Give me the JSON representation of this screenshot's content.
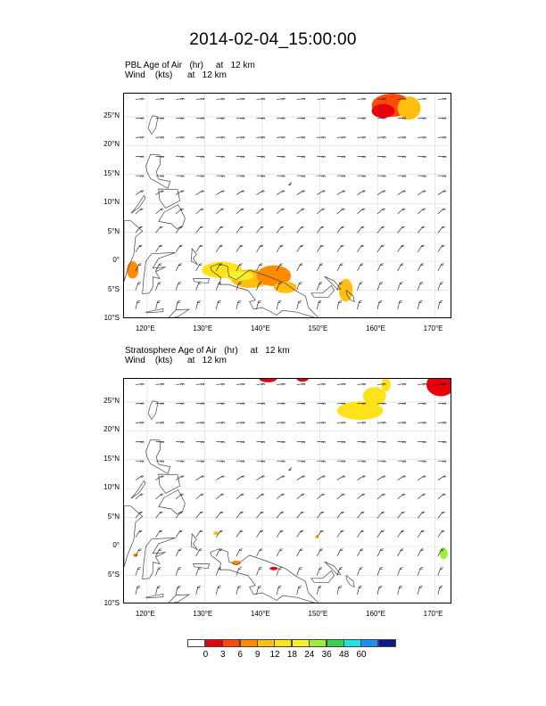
{
  "title": "2014-02-04_15:00:00",
  "colors": {
    "land_outline": "#444444",
    "grid": "#d9d9d9",
    "barb": "#111111"
  },
  "panels": [
    {
      "label_line1": "PBL Age of Air   (hr)     at   12 km",
      "label_line2": "Wind    (kts)      at   12 km"
    },
    {
      "label_line1": "Stratosphere Age of Air   (hr)     at   12 km",
      "label_line2": "Wind    (kts)      at   12 km"
    }
  ],
  "map": {
    "lon_range": [
      116,
      173
    ],
    "lat_range": [
      -10,
      29
    ],
    "x_ticks": [
      {
        "value": 120,
        "label": "120°E"
      },
      {
        "value": 130,
        "label": "130°E"
      },
      {
        "value": 140,
        "label": "140°E"
      },
      {
        "value": 150,
        "label": "150°E"
      },
      {
        "value": 160,
        "label": "160°E"
      },
      {
        "value": 170,
        "label": "170°E"
      }
    ],
    "y_ticks": [
      {
        "value": 25,
        "label": "25°N"
      },
      {
        "value": 20,
        "label": "20°N"
      },
      {
        "value": 15,
        "label": "15°N"
      },
      {
        "value": 10,
        "label": "10°N"
      },
      {
        "value": 5,
        "label": "5°N"
      },
      {
        "value": 0,
        "label": "0°"
      },
      {
        "value": -5,
        "label": "5°S"
      },
      {
        "value": -10,
        "label": "10°S"
      }
    ],
    "grid": true
  },
  "colorbar": {
    "colors": [
      "#ffffff",
      "#e8000b",
      "#ff4a0a",
      "#ff8c00",
      "#ffbe10",
      "#ffe31a",
      "#f7f12a",
      "#9bee3a",
      "#38d44a",
      "#1fe4e4",
      "#1e8ff0",
      "#0a1a8c"
    ],
    "labels": [
      "0",
      "3",
      "6",
      "9",
      "12",
      "18",
      "24",
      "36",
      "48",
      "60"
    ]
  },
  "fields": {
    "pbl": [
      {
        "lon": 162.5,
        "lat": 27.0,
        "rlon": 3.5,
        "rlat": 2.0,
        "color": "#ff4a0a"
      },
      {
        "lon": 161.0,
        "lat": 26.0,
        "rlon": 2.0,
        "rlat": 1.2,
        "color": "#e8000b"
      },
      {
        "lon": 165.5,
        "lat": 26.5,
        "rlon": 2.0,
        "rlat": 2.0,
        "color": "#ffbe10"
      },
      {
        "lon": 117.5,
        "lat": -1.5,
        "rlon": 1.0,
        "rlat": 1.5,
        "color": "#ff8c00"
      },
      {
        "lon": 133.0,
        "lat": -1.5,
        "rlon": 3.5,
        "rlat": 1.4,
        "color": "#ffe31a"
      },
      {
        "lon": 138.0,
        "lat": -3.0,
        "rlon": 3.5,
        "rlat": 1.6,
        "color": "#ffbe10"
      },
      {
        "lon": 142.0,
        "lat": -2.5,
        "rlon": 3.0,
        "rlat": 1.8,
        "color": "#ff8c00"
      },
      {
        "lon": 144.0,
        "lat": -4.5,
        "rlon": 2.0,
        "rlat": 1.0,
        "color": "#ffbe10"
      },
      {
        "lon": 136.0,
        "lat": -2.5,
        "rlon": 2.5,
        "rlat": 0.8,
        "color": "#f7f12a"
      },
      {
        "lon": 154.5,
        "lat": -5.0,
        "rlon": 1.2,
        "rlat": 2.0,
        "color": "#ffbe10"
      }
    ],
    "strat": [
      {
        "lon": 171.0,
        "lat": 28.0,
        "rlon": 2.5,
        "rlat": 2.0,
        "color": "#e8000b"
      },
      {
        "lon": 141.0,
        "lat": 29.0,
        "rlon": 1.5,
        "rlat": 0.6,
        "color": "#e8000b"
      },
      {
        "lon": 147.0,
        "lat": 29.0,
        "rlon": 1.0,
        "rlat": 0.5,
        "color": "#e8000b"
      },
      {
        "lon": 157.0,
        "lat": 23.5,
        "rlon": 4.0,
        "rlat": 1.6,
        "color": "#ffe31a"
      },
      {
        "lon": 159.5,
        "lat": 26.0,
        "rlon": 2.0,
        "rlat": 1.6,
        "color": "#ffe31a"
      },
      {
        "lon": 161.5,
        "lat": 28.0,
        "rlon": 0.8,
        "rlat": 1.2,
        "color": "#ffe31a"
      },
      {
        "lon": 132.0,
        "lat": 2.3,
        "rlon": 0.5,
        "rlat": 0.3,
        "color": "#ffbe10"
      },
      {
        "lon": 135.5,
        "lat": -2.8,
        "rlon": 0.8,
        "rlat": 0.4,
        "color": "#ff8c00"
      },
      {
        "lon": 142.0,
        "lat": -3.8,
        "rlon": 0.7,
        "rlat": 0.3,
        "color": "#e8000b"
      },
      {
        "lon": 149.5,
        "lat": 1.7,
        "rlon": 0.3,
        "rlat": 0.3,
        "color": "#ffbe10"
      },
      {
        "lon": 171.5,
        "lat": -1.2,
        "rlon": 0.7,
        "rlat": 1.0,
        "color": "#9bee3a"
      },
      {
        "lon": 118.0,
        "lat": -1.5,
        "rlon": 0.4,
        "rlat": 0.3,
        "color": "#ff8c00"
      }
    ]
  }
}
